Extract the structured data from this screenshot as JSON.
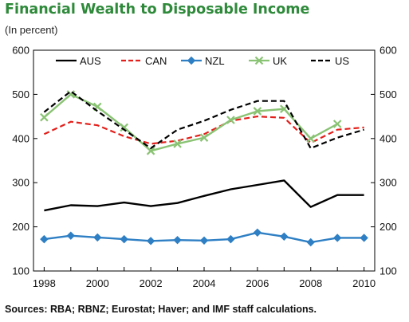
{
  "title": "Financial Wealth to Disposable Income",
  "subtitle": "(In percent)",
  "source": "Sources: RBA; RBNZ; Eurostat; Haver; and IMF staff calculations.",
  "chart_data": {
    "type": "line",
    "title": "Financial Wealth to Disposable Income",
    "ylabel": "(In percent)",
    "xlim": [
      1997.6,
      2010.4
    ],
    "ylim": [
      100,
      600
    ],
    "yticks": [
      100,
      200,
      300,
      400,
      500,
      600
    ],
    "xticks": [
      1998,
      2000,
      2002,
      2004,
      2006,
      2008,
      2010
    ],
    "grid": false,
    "legend_position": "top",
    "secondary_y_axis": true,
    "series": [
      {
        "name": "AUS",
        "color": "#000000",
        "style": "solid",
        "marker": "none",
        "x": [
          1998,
          1999,
          2000,
          2001,
          2002,
          2003,
          2004,
          2005,
          2006,
          2007,
          2008,
          2009,
          2010
        ],
        "values": [
          237,
          249,
          247,
          255,
          247,
          254,
          270,
          285,
          295,
          305,
          245,
          272,
          272
        ]
      },
      {
        "name": "CAN",
        "color": "#e3201b",
        "style": "dashed",
        "marker": "none",
        "x": [
          1998,
          1999,
          2000,
          2001,
          2002,
          2003,
          2004,
          2005,
          2006,
          2007,
          2008,
          2009,
          2010
        ],
        "values": [
          410,
          438,
          430,
          405,
          388,
          395,
          410,
          440,
          450,
          447,
          390,
          420,
          425
        ]
      },
      {
        "name": "NZL",
        "color": "#2e7fc4",
        "style": "solid",
        "marker": "diamond",
        "x": [
          1998,
          1999,
          2000,
          2001,
          2002,
          2003,
          2004,
          2005,
          2006,
          2007,
          2008,
          2009,
          2010
        ],
        "values": [
          172,
          180,
          176,
          172,
          168,
          170,
          169,
          172,
          187,
          178,
          165,
          175,
          175
        ]
      },
      {
        "name": "UK",
        "color": "#8ac374",
        "style": "solid",
        "marker": "x",
        "x": [
          1998,
          1999,
          2000,
          2001,
          2002,
          2003,
          2004,
          2005,
          2006,
          2007,
          2008,
          2009
        ],
        "values": [
          448,
          500,
          472,
          425,
          372,
          388,
          402,
          442,
          462,
          467,
          400,
          433
        ]
      },
      {
        "name": "US",
        "color": "#000000",
        "style": "dashed",
        "marker": "none",
        "x": [
          1998,
          1999,
          2000,
          2001,
          2002,
          2003,
          2004,
          2005,
          2006,
          2007,
          2008,
          2009,
          2010
        ],
        "values": [
          460,
          507,
          462,
          420,
          378,
          420,
          440,
          465,
          485,
          485,
          378,
          402,
          420
        ]
      }
    ]
  }
}
